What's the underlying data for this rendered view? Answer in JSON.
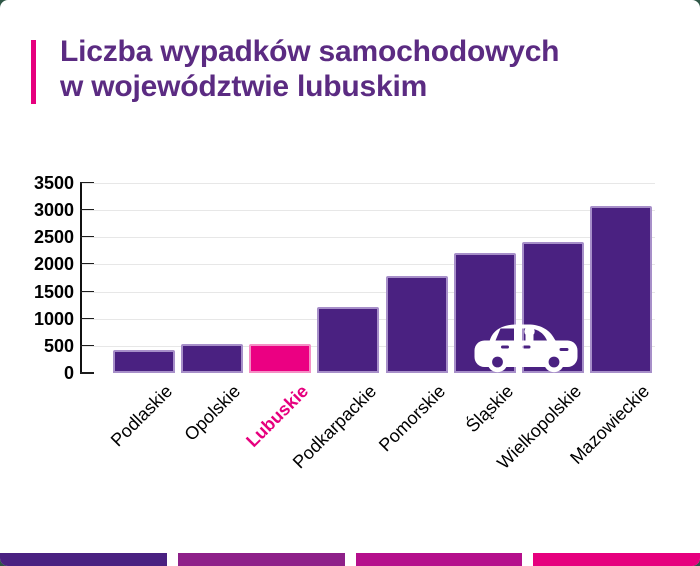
{
  "page": {
    "card_background": "#ffffff",
    "outside_background": "#2e5646"
  },
  "header": {
    "title_line1": "Liczba wypadków samochodowych",
    "title_line2": "w województwie lubuskim",
    "title_color": "#5b2b82",
    "accent_color": "#e6007e"
  },
  "chart_data": {
    "type": "bar",
    "title": "Liczba wypadków samochodowych w województwie lubuskim",
    "xlabel": "",
    "ylabel": "",
    "categories": [
      "Podlaskie",
      "Opolskie",
      "Lubuskie",
      "Podkarpackie",
      "Pomorskie",
      "Śląskie",
      "Wielkopolskie",
      "Mazowieckie"
    ],
    "values": [
      430,
      535,
      535,
      1225,
      1790,
      2210,
      2420,
      3080
    ],
    "highlight_index": 2,
    "highlight_category": "Lubuskie",
    "ylim": [
      0,
      3500
    ],
    "yticks": [
      0,
      500,
      1000,
      1500,
      2000,
      2500,
      3000,
      3500
    ],
    "grid": true,
    "legend_position": "none",
    "bar_color": "#4a2181",
    "bar_border_color": "#a78fc9",
    "highlight_color": "#eb0082",
    "highlight_border_color": "#f48fc5",
    "xlabel_color": "#000000",
    "highlight_label_color": "#e6007e",
    "decoration": "white car icon overlapping Śląskie and Wielkopolskie bars"
  },
  "icons": {
    "car": "car-icon"
  },
  "footer": {
    "segment_colors": [
      "#4a2181",
      "#8e2089",
      "#b50f8c",
      "#e6007e"
    ]
  }
}
